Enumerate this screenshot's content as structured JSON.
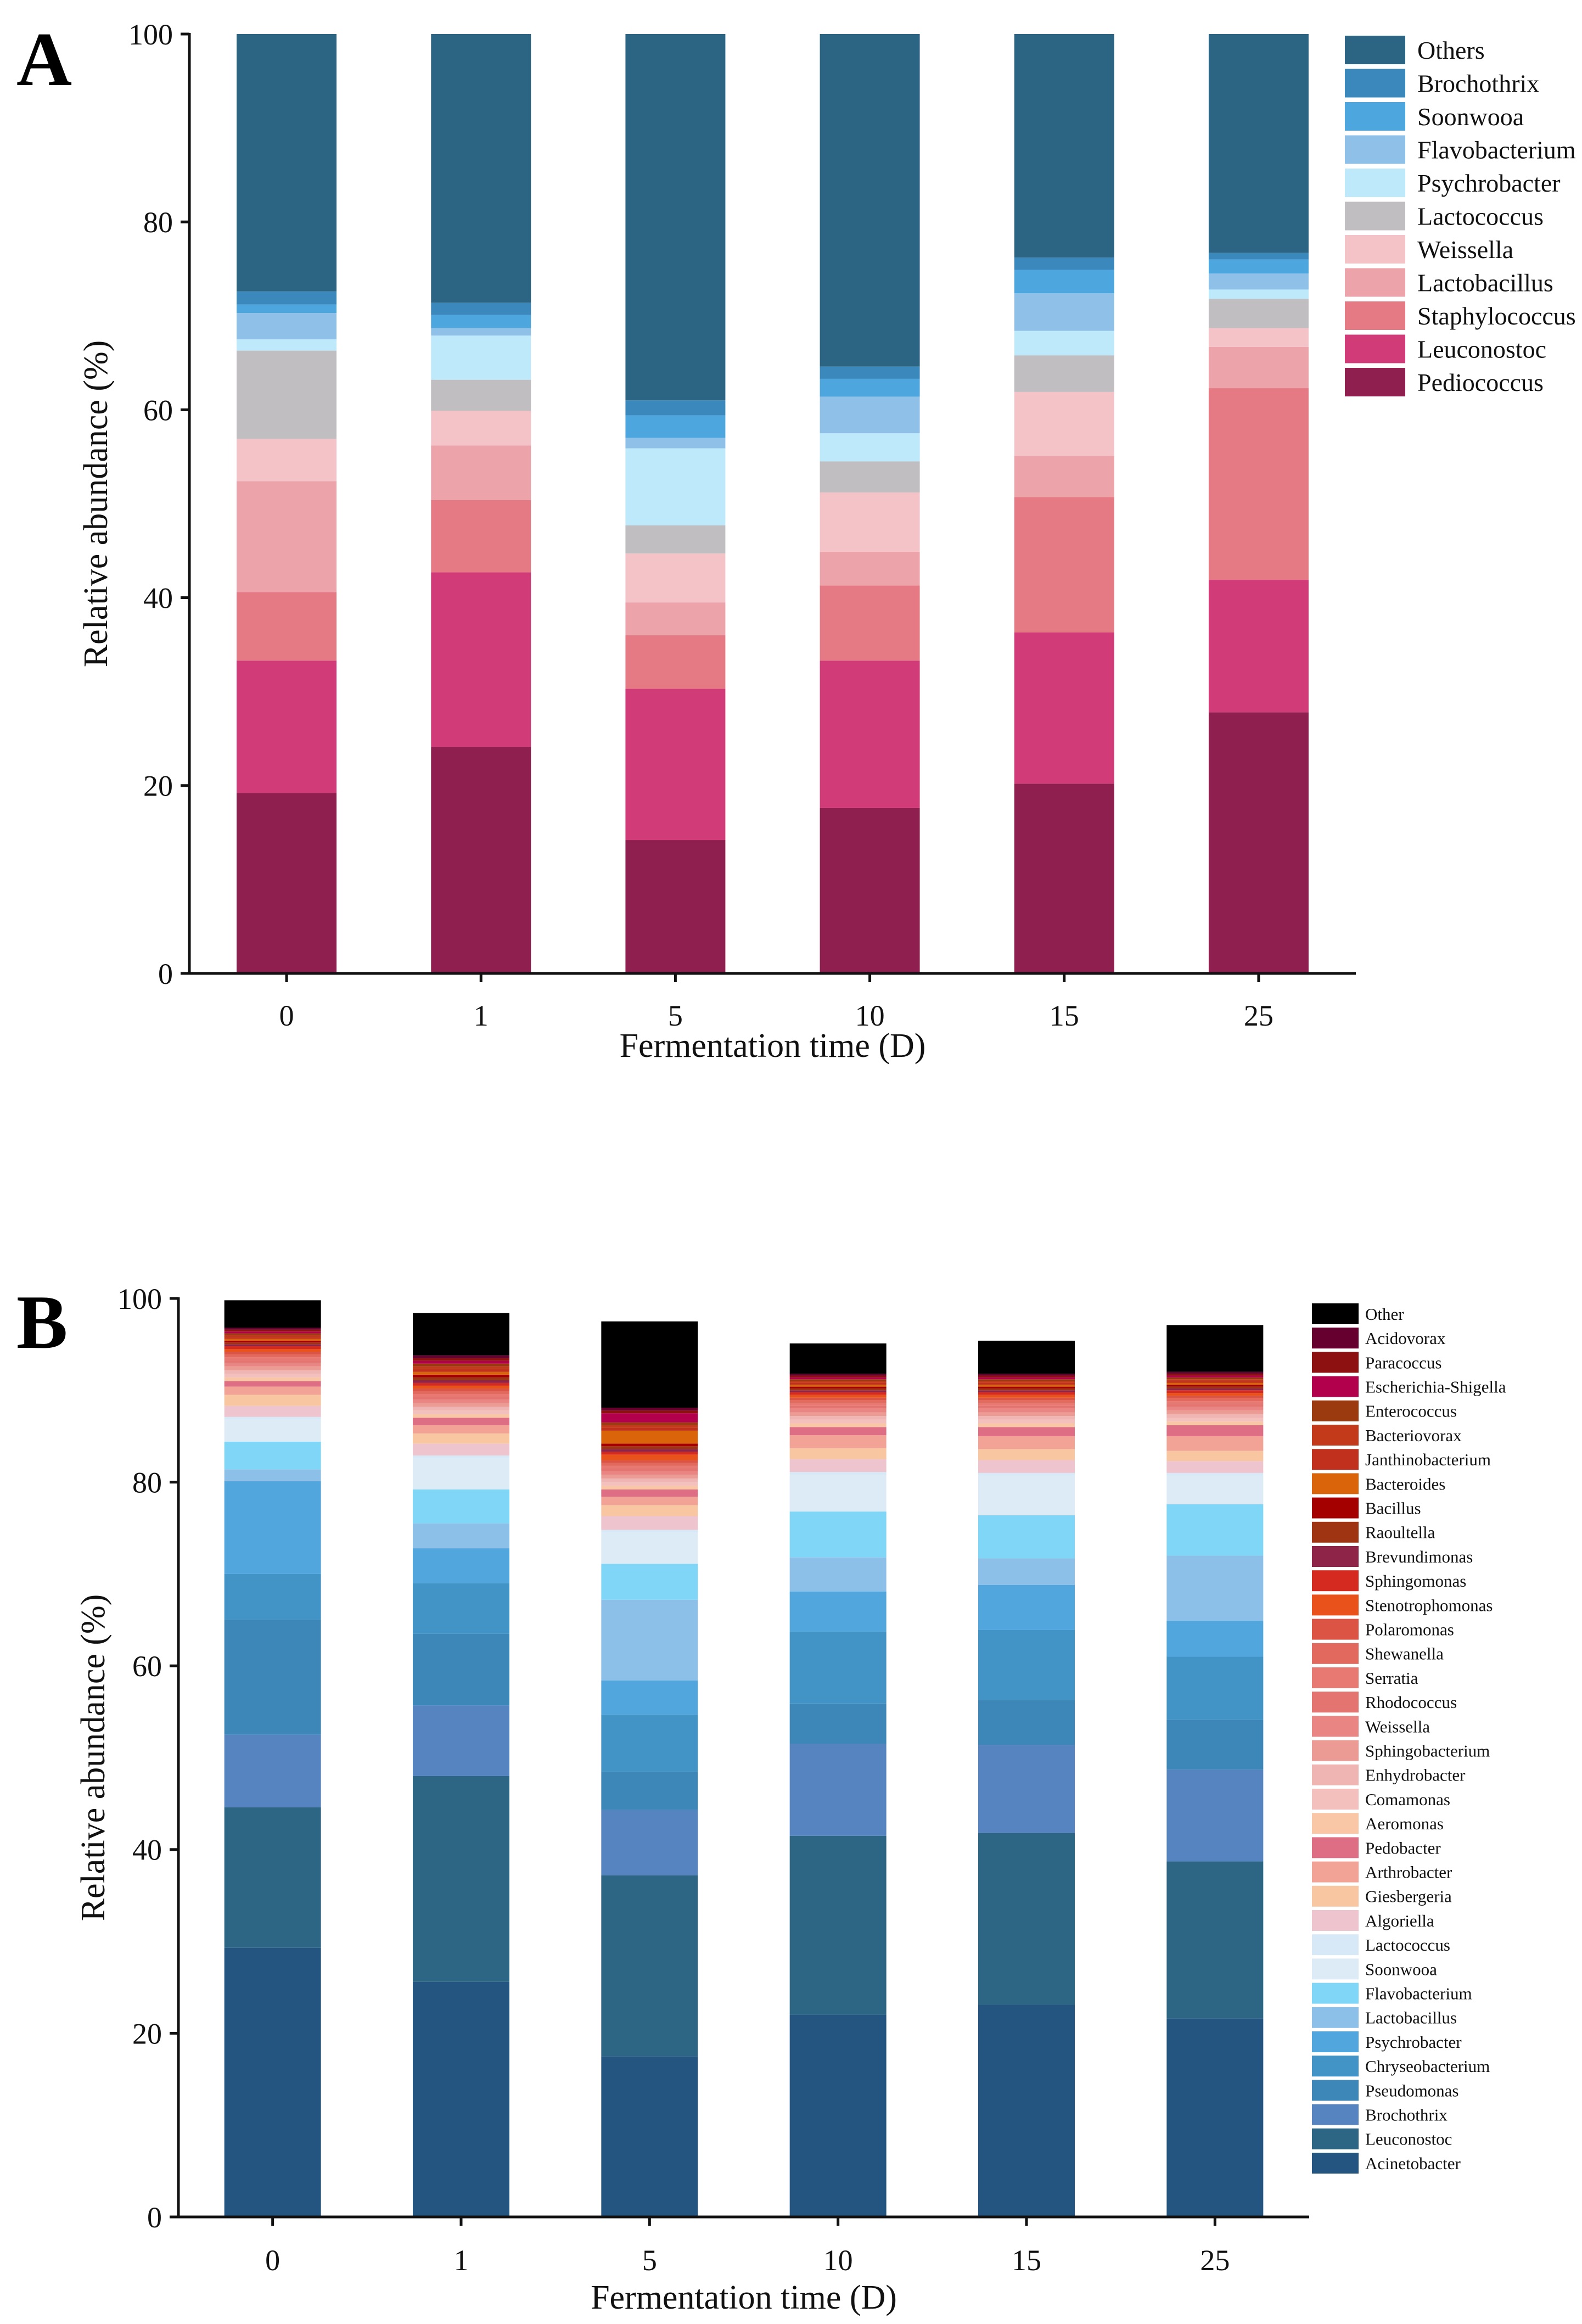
{
  "chart_data": [
    {
      "panel": "A",
      "type": "bar",
      "stacked": true,
      "title": "",
      "xlabel": "Fermentation time (D)",
      "ylabel": "Relative abundance (%)",
      "ylim": [
        0,
        100
      ],
      "yticks": [
        0,
        20,
        40,
        60,
        80,
        100
      ],
      "grid": false,
      "legend_position": "top-right",
      "categories": [
        "0",
        "1",
        "5",
        "10",
        "15",
        "25"
      ],
      "series": [
        {
          "name": "Pediococcus",
          "color": "#8F1F4E",
          "values": [
            19.2,
            24.1,
            14.2,
            17.6,
            20.2,
            27.8
          ]
        },
        {
          "name": "Leuconostoc",
          "color": "#D13B78",
          "values": [
            14.1,
            18.6,
            16.1,
            15.7,
            16.1,
            14.1
          ]
        },
        {
          "name": "Staphylococcus",
          "color": "#E57A85",
          "values": [
            7.3,
            7.7,
            5.7,
            8.0,
            14.4,
            20.4
          ]
        },
        {
          "name": "Lactobacillus",
          "color": "#EDA3AA",
          "values": [
            11.8,
            5.8,
            3.5,
            3.6,
            4.4,
            4.4
          ]
        },
        {
          "name": "Weissella",
          "color": "#F4C3C8",
          "values": [
            4.5,
            3.7,
            5.2,
            6.3,
            6.8,
            2.0
          ]
        },
        {
          "name": "Lactococcus",
          "color": "#C0BEC0",
          "values": [
            9.4,
            3.3,
            3.0,
            3.3,
            3.9,
            3.1
          ]
        },
        {
          "name": "Psychrobacter",
          "color": "#BDE9FA",
          "values": [
            1.2,
            4.7,
            8.2,
            3.0,
            2.6,
            1.0
          ]
        },
        {
          "name": "Flavobacterium",
          "color": "#8FC1E8",
          "values": [
            2.8,
            0.8,
            1.1,
            3.9,
            4.0,
            1.7
          ]
        },
        {
          "name": "Soonwooa",
          "color": "#4EA6DE",
          "values": [
            0.9,
            1.4,
            2.4,
            1.9,
            2.5,
            1.5
          ]
        },
        {
          "name": "Brochothrix",
          "color": "#3A88BC",
          "values": [
            1.4,
            1.3,
            1.6,
            1.3,
            1.3,
            0.7
          ]
        },
        {
          "name": "Others",
          "color": "#2C6583",
          "values": [
            27.4,
            28.6,
            39.0,
            35.4,
            23.8,
            23.3
          ]
        }
      ]
    },
    {
      "panel": "B",
      "type": "bar",
      "stacked": true,
      "title": "",
      "xlabel": "Fermentation time (D)",
      "ylabel": "Relative abundance (%)",
      "ylim": [
        0,
        100
      ],
      "yticks": [
        0,
        20,
        40,
        60,
        80,
        100
      ],
      "grid": false,
      "legend_position": "right",
      "categories": [
        "0",
        "1",
        "5",
        "10",
        "15",
        "25"
      ],
      "series": [
        {
          "name": "Acinetobacter",
          "color": "#245580",
          "values": [
            29.3,
            25.6,
            17.5,
            22.0,
            23.1,
            21.6
          ]
        },
        {
          "name": "Leuconostoc",
          "color": "#2D6585",
          "values": [
            15.3,
            22.4,
            19.7,
            19.5,
            18.7,
            17.1
          ]
        },
        {
          "name": "Brochothrix",
          "color": "#5584C0",
          "values": [
            7.9,
            7.7,
            7.1,
            10.0,
            9.6,
            10.0
          ]
        },
        {
          "name": "Pseudomonas",
          "color": "#3D87B8",
          "values": [
            12.5,
            7.8,
            4.2,
            4.4,
            4.9,
            5.4
          ]
        },
        {
          "name": "Chryseobacterium",
          "color": "#4394C6",
          "values": [
            5.0,
            5.5,
            6.2,
            7.8,
            7.6,
            6.9
          ]
        },
        {
          "name": "Psychrobacter",
          "color": "#52A6DE",
          "values": [
            10.1,
            3.8,
            3.7,
            4.4,
            4.9,
            3.9
          ]
        },
        {
          "name": "Lactobacillus",
          "color": "#8DC0E8",
          "values": [
            1.3,
            2.7,
            8.8,
            3.7,
            2.9,
            7.1
          ]
        },
        {
          "name": "Flavobacterium",
          "color": "#7FD6F7",
          "values": [
            3.0,
            3.7,
            3.9,
            5.0,
            4.7,
            5.6
          ]
        },
        {
          "name": "Soonwooa",
          "color": "#DCEBF6",
          "values": [
            2.4,
            3.4,
            3.4,
            4.0,
            4.3,
            3.1
          ]
        },
        {
          "name": "Lactococcus",
          "color": "#D7E9F7",
          "values": [
            0.3,
            0.3,
            0.3,
            0.3,
            0.3,
            0.3
          ]
        },
        {
          "name": "Algoriella",
          "color": "#EEC4CE",
          "values": [
            1.2,
            1.3,
            1.5,
            1.4,
            1.4,
            1.3
          ]
        },
        {
          "name": "Giesbergeria",
          "color": "#F8C6A0",
          "values": [
            1.2,
            1.1,
            1.2,
            1.2,
            1.2,
            1.1
          ]
        },
        {
          "name": "Arthrobacter",
          "color": "#F2A396",
          "values": [
            0.9,
            0.9,
            0.9,
            1.4,
            1.4,
            1.6
          ]
        },
        {
          "name": "Pedobacter",
          "color": "#DE6E84",
          "values": [
            0.6,
            0.8,
            0.8,
            0.9,
            1.0,
            1.2
          ]
        },
        {
          "name": "Aeromonas",
          "color": "#F9C7A6",
          "values": [
            0.4,
            0.4,
            0.4,
            0.4,
            0.4,
            0.4
          ]
        },
        {
          "name": "Comamonas",
          "color": "#F3C0BD",
          "values": [
            0.4,
            0.4,
            0.4,
            0.4,
            0.4,
            0.4
          ]
        },
        {
          "name": "Enhydrobacter",
          "color": "#EFB5B3",
          "values": [
            0.4,
            0.4,
            0.4,
            0.4,
            0.4,
            0.4
          ]
        },
        {
          "name": "Sphingobacterium",
          "color": "#EC9A94",
          "values": [
            0.4,
            0.4,
            0.4,
            0.4,
            0.4,
            0.4
          ]
        },
        {
          "name": "Weissella",
          "color": "#E98683",
          "values": [
            0.4,
            0.4,
            0.4,
            0.4,
            0.4,
            0.4
          ]
        },
        {
          "name": "Rhodococcus",
          "color": "#E37470",
          "values": [
            0.3,
            0.3,
            0.3,
            0.3,
            0.3,
            0.3
          ]
        },
        {
          "name": "Serratia",
          "color": "#E77872",
          "values": [
            0.3,
            0.3,
            0.3,
            0.3,
            0.3,
            0.3
          ]
        },
        {
          "name": "Shewanella",
          "color": "#E2695E",
          "values": [
            0.3,
            0.3,
            0.3,
            0.3,
            0.3,
            0.3
          ]
        },
        {
          "name": "Polaromonas",
          "color": "#DC5444",
          "values": [
            0.3,
            0.3,
            0.3,
            0.3,
            0.3,
            0.3
          ]
        },
        {
          "name": "Stenotrophomonas",
          "color": "#E9521A",
          "values": [
            0.3,
            0.3,
            0.6,
            0.3,
            0.3,
            0.3
          ]
        },
        {
          "name": "Sphingomonas",
          "color": "#D42A1F",
          "values": [
            0.3,
            0.3,
            0.3,
            0.3,
            0.3,
            0.3
          ]
        },
        {
          "name": "Brevundimonas",
          "color": "#8E2448",
          "values": [
            0.2,
            0.3,
            0.3,
            0.2,
            0.2,
            0.2
          ]
        },
        {
          "name": "Raoultella",
          "color": "#9E3412",
          "values": [
            0.2,
            0.3,
            0.3,
            0.2,
            0.2,
            0.2
          ]
        },
        {
          "name": "Bacillus",
          "color": "#A40000",
          "values": [
            0.2,
            0.3,
            0.3,
            0.2,
            0.2,
            0.2
          ]
        },
        {
          "name": "Bacteroides",
          "color": "#D9640A",
          "values": [
            0.2,
            0.3,
            1.4,
            0.2,
            0.2,
            0.2
          ]
        },
        {
          "name": "Janthinobacterium",
          "color": "#C1301C",
          "values": [
            0.2,
            0.3,
            0.3,
            0.2,
            0.2,
            0.2
          ]
        },
        {
          "name": "Bacteriovorax",
          "color": "#C23A1A",
          "values": [
            0.2,
            0.3,
            0.3,
            0.2,
            0.2,
            0.2
          ]
        },
        {
          "name": "Enterococcus",
          "color": "#9A3A0E",
          "values": [
            0.2,
            0.3,
            0.3,
            0.2,
            0.2,
            0.2
          ]
        },
        {
          "name": "Escherichia-Shigella",
          "color": "#B3004D",
          "values": [
            0.2,
            0.3,
            1.0,
            0.2,
            0.2,
            0.2
          ]
        },
        {
          "name": "Paracoccus",
          "color": "#8E1111",
          "values": [
            0.2,
            0.3,
            0.3,
            0.2,
            0.2,
            0.2
          ]
        },
        {
          "name": "Acidovorax",
          "color": "#66002E",
          "values": [
            0.2,
            0.3,
            0.3,
            0.2,
            0.2,
            0.2
          ]
        },
        {
          "name": "Other",
          "color": "#000000",
          "values": [
            3.0,
            4.6,
            9.4,
            3.3,
            3.6,
            5.1
          ]
        }
      ]
    }
  ]
}
